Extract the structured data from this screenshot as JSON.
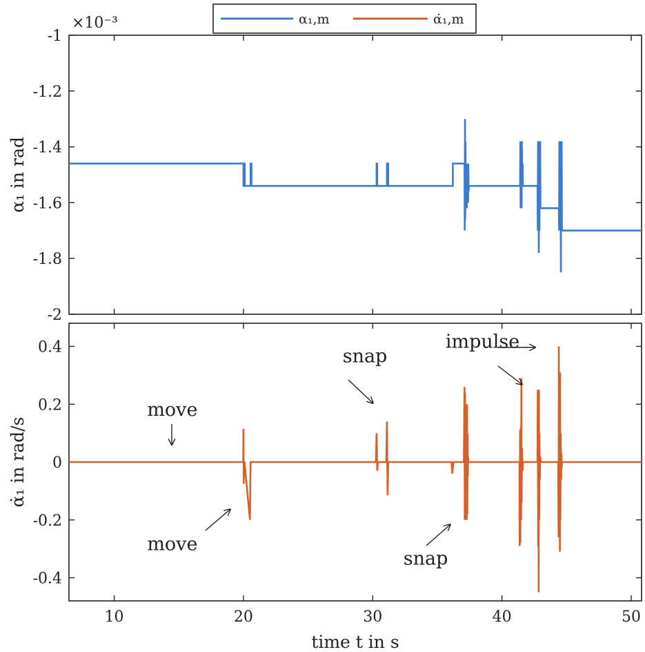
{
  "chart_data": [
    {
      "type": "line",
      "xlabel": "time t in s",
      "ylabel": "α₁ in rad",
      "y_exponent": "×10⁻³",
      "xlim": [
        6.5,
        50.8
      ],
      "ylim": [
        -2,
        -1
      ],
      "xticks": [
        10,
        20,
        30,
        40,
        50
      ],
      "yticks": [
        -2,
        -1.8,
        -1.6,
        -1.4,
        -1.2,
        -1
      ],
      "ytick_labels": [
        "-2",
        "-1.8",
        "-1.6",
        "-1.4",
        "-1.2",
        "-1"
      ],
      "series": [
        {
          "name": "α₁,m",
          "color": "#3d7ccc",
          "x": [
            6.5,
            20.0,
            20.0,
            20.02,
            20.02,
            20.1,
            20.1,
            20.55,
            20.55,
            20.62,
            20.62,
            30.3,
            30.3,
            30.35,
            30.35,
            31.1,
            31.1,
            31.2,
            31.2,
            36.2,
            36.2,
            37.1,
            37.12,
            37.14,
            37.16,
            37.18,
            37.2,
            37.22,
            37.24,
            37.26,
            37.28,
            37.32,
            37.34,
            37.36,
            37.38,
            37.4,
            37.42,
            37.45,
            37.5,
            41.4,
            41.42,
            41.44,
            41.46,
            41.48,
            41.5,
            41.52,
            41.54,
            41.58,
            41.6,
            41.62,
            41.7,
            42.75,
            42.77,
            42.79,
            42.81,
            42.83,
            42.85,
            42.88,
            42.9,
            42.92,
            42.94,
            42.96,
            42.98,
            43.02,
            43.1,
            44.4,
            44.42,
            44.44,
            44.46,
            44.48,
            44.5,
            44.52,
            44.56,
            44.58,
            44.6,
            44.62,
            44.64,
            44.66,
            44.7,
            44.75,
            50.8
          ],
          "y": [
            -1.46,
            -1.46,
            -1.54,
            -1.54,
            -1.46,
            -1.46,
            -1.54,
            -1.54,
            -1.46,
            -1.46,
            -1.54,
            -1.54,
            -1.46,
            -1.46,
            -1.54,
            -1.54,
            -1.46,
            -1.46,
            -1.54,
            -1.54,
            -1.46,
            -1.46,
            -1.7,
            -1.3,
            -1.66,
            -1.38,
            -1.62,
            -1.46,
            -1.54,
            -1.46,
            -1.62,
            -1.46,
            -1.54,
            -1.46,
            -1.6,
            -1.46,
            -1.56,
            -1.54,
            -1.54,
            -1.54,
            -1.38,
            -1.62,
            -1.38,
            -1.54,
            -1.38,
            -1.62,
            -1.38,
            -1.54,
            -1.46,
            -1.54,
            -1.54,
            -1.54,
            -1.7,
            -1.38,
            -1.62,
            -1.38,
            -1.78,
            -1.38,
            -1.7,
            -1.38,
            -1.62,
            -1.38,
            -1.62,
            -1.62,
            -1.62,
            -1.62,
            -1.7,
            -1.38,
            -1.7,
            -1.38,
            -1.62,
            -1.38,
            -1.85,
            -1.38,
            -1.7,
            -1.38,
            -1.7,
            -1.7,
            -1.7,
            -1.7,
            -1.7
          ]
        }
      ]
    },
    {
      "type": "line",
      "xlabel": "time t in s",
      "ylabel": "α̇₁ in rad/s",
      "xlim": [
        6.5,
        50.8
      ],
      "ylim": [
        -0.48,
        0.48
      ],
      "xticks": [
        10,
        20,
        30,
        40,
        50
      ],
      "xtick_labels": [
        "10",
        "20",
        "30",
        "40",
        "50"
      ],
      "yticks": [
        -0.4,
        -0.2,
        0,
        0.2,
        0.4
      ],
      "ytick_labels": [
        "-0.4",
        "-0.2",
        "0",
        "0.2",
        "0.4"
      ],
      "series": [
        {
          "name": "α̇₁,m",
          "color": "#d4602a",
          "x": [
            6.5,
            19.98,
            20.0,
            20.02,
            20.06,
            20.08,
            20.5,
            20.55,
            20.6,
            20.65,
            30.25,
            30.3,
            30.35,
            30.4,
            31.05,
            31.1,
            31.15,
            31.2,
            36.1,
            36.15,
            36.25,
            37.05,
            37.1,
            37.12,
            37.14,
            37.16,
            37.18,
            37.2,
            37.22,
            37.24,
            37.26,
            37.28,
            37.3,
            37.32,
            37.34,
            37.36,
            37.38,
            37.4,
            37.45,
            41.35,
            41.37,
            41.4,
            41.42,
            41.45,
            41.48,
            41.5,
            41.52,
            41.55,
            41.6,
            41.62,
            41.7,
            42.75,
            42.77,
            42.8,
            42.82,
            42.84,
            42.86,
            42.88,
            42.9,
            42.93,
            42.96,
            43.0,
            43.05,
            44.35,
            44.38,
            44.4,
            44.42,
            44.45,
            44.48,
            44.5,
            44.52,
            44.55,
            44.58,
            44.6,
            44.62,
            44.65,
            44.68,
            44.72,
            50.8
          ],
          "y": [
            0,
            0,
            0.115,
            -0.075,
            0,
            0,
            -0.2,
            0,
            0,
            0,
            0,
            0.1,
            -0.03,
            0,
            0,
            0.14,
            -0.115,
            0,
            0,
            -0.04,
            0,
            0,
            0.26,
            -0.2,
            0.24,
            -0.2,
            0.2,
            -0.2,
            0.2,
            -0.2,
            0.19,
            -0.2,
            0.2,
            -0.18,
            0.1,
            -0.05,
            0.02,
            0,
            0,
            0,
            -0.29,
            0.11,
            -0.28,
            0.12,
            -0.2,
            0.29,
            -0.14,
            0.05,
            -0.03,
            0,
            0,
            0,
            0.25,
            -0.29,
            0.25,
            -0.45,
            0.25,
            -0.2,
            0.1,
            -0.06,
            0.02,
            0,
            0,
            0,
            -0.26,
            0.4,
            -0.25,
            0.3,
            -0.31,
            0.31,
            -0.2,
            0.1,
            -0.06,
            0.03,
            -0.02,
            0,
            0,
            0,
            0
          ]
        }
      ],
      "annotations": [
        {
          "text": "move",
          "x": 14.5,
          "y": 0.16
        },
        {
          "text": "move",
          "x": 14.5,
          "y": -0.305
        },
        {
          "text": "snap",
          "x": 29.4,
          "y": 0.345
        },
        {
          "text": "snap",
          "x": 34.1,
          "y": -0.355
        },
        {
          "text": "impulse",
          "x": 38.5,
          "y": 0.395
        }
      ]
    }
  ],
  "legend": {
    "placement": "top-center",
    "entries": [
      {
        "label": "α₁,m",
        "color": "#3d7ccc"
      },
      {
        "label": "α̇₁,m",
        "color": "#d4602a"
      }
    ]
  }
}
